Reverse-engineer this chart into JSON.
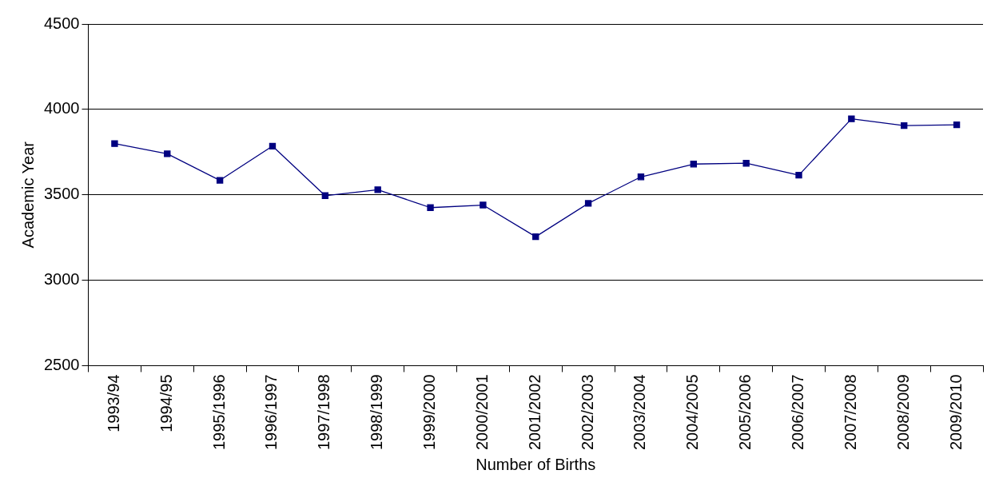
{
  "chart_data": {
    "type": "line",
    "xlabel": "Number of Births",
    "ylabel": "Academic Year",
    "categories": [
      "1993/94",
      "1994/95",
      "1995/1996",
      "1996/1997",
      "1997/1998",
      "1998/1999",
      "1999/2000",
      "2000/2001",
      "2001/2002",
      "2002/2003",
      "2003/2004",
      "2004/2005",
      "2005/2006",
      "2006/2007",
      "2007/2008",
      "2008/2009",
      "2009/2010"
    ],
    "series": [
      {
        "color": "#000080",
        "values": [
          3800,
          3740,
          3585,
          3785,
          3495,
          3530,
          3425,
          3440,
          3255,
          3450,
          3605,
          3680,
          3685,
          3615,
          3945,
          3905,
          3910
        ]
      }
    ],
    "ylim": [
      2500,
      4500
    ],
    "yticks": [
      2500,
      3000,
      3500,
      4000,
      4500
    ],
    "grid": "y",
    "legend": false,
    "marker": "square",
    "line_style": "solid"
  }
}
